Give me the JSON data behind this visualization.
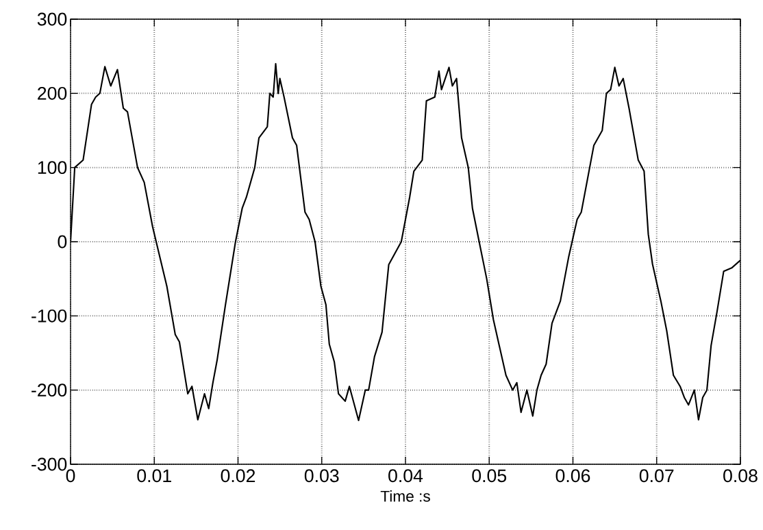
{
  "chart_data": {
    "type": "line",
    "xlabel": "Time :s",
    "xlim": [
      0,
      0.08
    ],
    "ylim": [
      -300,
      300
    ],
    "xticks": [
      0,
      0.01,
      0.02,
      0.03,
      0.04,
      0.05,
      0.06,
      0.07,
      0.08
    ],
    "yticks": [
      -300,
      -200,
      -100,
      0,
      100,
      200,
      300
    ],
    "grid": true,
    "series": [
      {
        "color": "#000000",
        "x": [
          0,
          0.0005,
          0.0015,
          0.0025,
          0.003,
          0.0035,
          0.0041,
          0.0048,
          0.0056,
          0.0063,
          0.0068,
          0.008,
          0.0088,
          0.0098,
          0.0115,
          0.0125,
          0.013,
          0.014,
          0.0145,
          0.0152,
          0.016,
          0.0165,
          0.017,
          0.0175,
          0.0185,
          0.0197,
          0.0205,
          0.021,
          0.022,
          0.0225,
          0.0235,
          0.0238,
          0.0242,
          0.0245,
          0.0248,
          0.025,
          0.0255,
          0.0265,
          0.027,
          0.028,
          0.0285,
          0.0292,
          0.0299,
          0.0305,
          0.0309,
          0.0315,
          0.032,
          0.0328,
          0.0333,
          0.0344,
          0.0352,
          0.0356,
          0.0363,
          0.0372,
          0.038,
          0.0395,
          0.0405,
          0.041,
          0.042,
          0.0425,
          0.0435,
          0.044,
          0.0443,
          0.0452,
          0.0456,
          0.0461,
          0.0467,
          0.0475,
          0.048,
          0.0488,
          0.0497,
          0.0505,
          0.0512,
          0.052,
          0.0528,
          0.0533,
          0.0538,
          0.0545,
          0.0552,
          0.0557,
          0.0562,
          0.0568,
          0.0575,
          0.0585,
          0.0595,
          0.0605,
          0.061,
          0.062,
          0.0625,
          0.0635,
          0.064,
          0.0645,
          0.065,
          0.0655,
          0.066,
          0.0667,
          0.0678,
          0.0685,
          0.069,
          0.0695,
          0.0705,
          0.0712,
          0.072,
          0.0728,
          0.0733,
          0.0738,
          0.0745,
          0.075,
          0.0755,
          0.076,
          0.0765,
          0.0772,
          0.078,
          0.079,
          0.08
        ],
        "values": [
          0,
          100,
          110,
          185,
          195,
          200,
          236,
          210,
          232,
          180,
          175,
          100,
          80,
          20,
          -60,
          -125,
          -135,
          -205,
          -195,
          -240,
          -205,
          -225,
          -190,
          -160,
          -85,
          0,
          45,
          60,
          100,
          140,
          155,
          200,
          195,
          240,
          200,
          220,
          195,
          140,
          130,
          40,
          30,
          0,
          -60,
          -85,
          -138,
          -162,
          -205,
          -215,
          -195,
          -241,
          -200,
          -200,
          -155,
          -122,
          -31,
          0,
          60,
          95,
          110,
          190,
          195,
          230,
          205,
          235,
          210,
          220,
          140,
          100,
          45,
          0,
          -50,
          -105,
          -140,
          -180,
          -200,
          -190,
          -230,
          -200,
          -235,
          -200,
          -180,
          -165,
          -110,
          -80,
          -20,
          30,
          40,
          100,
          130,
          150,
          200,
          205,
          235,
          210,
          220,
          180,
          110,
          95,
          10,
          -30,
          -80,
          -120,
          -180,
          -195,
          -210,
          -220,
          -200,
          -240,
          -210,
          -200,
          -140,
          -95,
          -40,
          -35,
          -25
        ]
      }
    ]
  }
}
